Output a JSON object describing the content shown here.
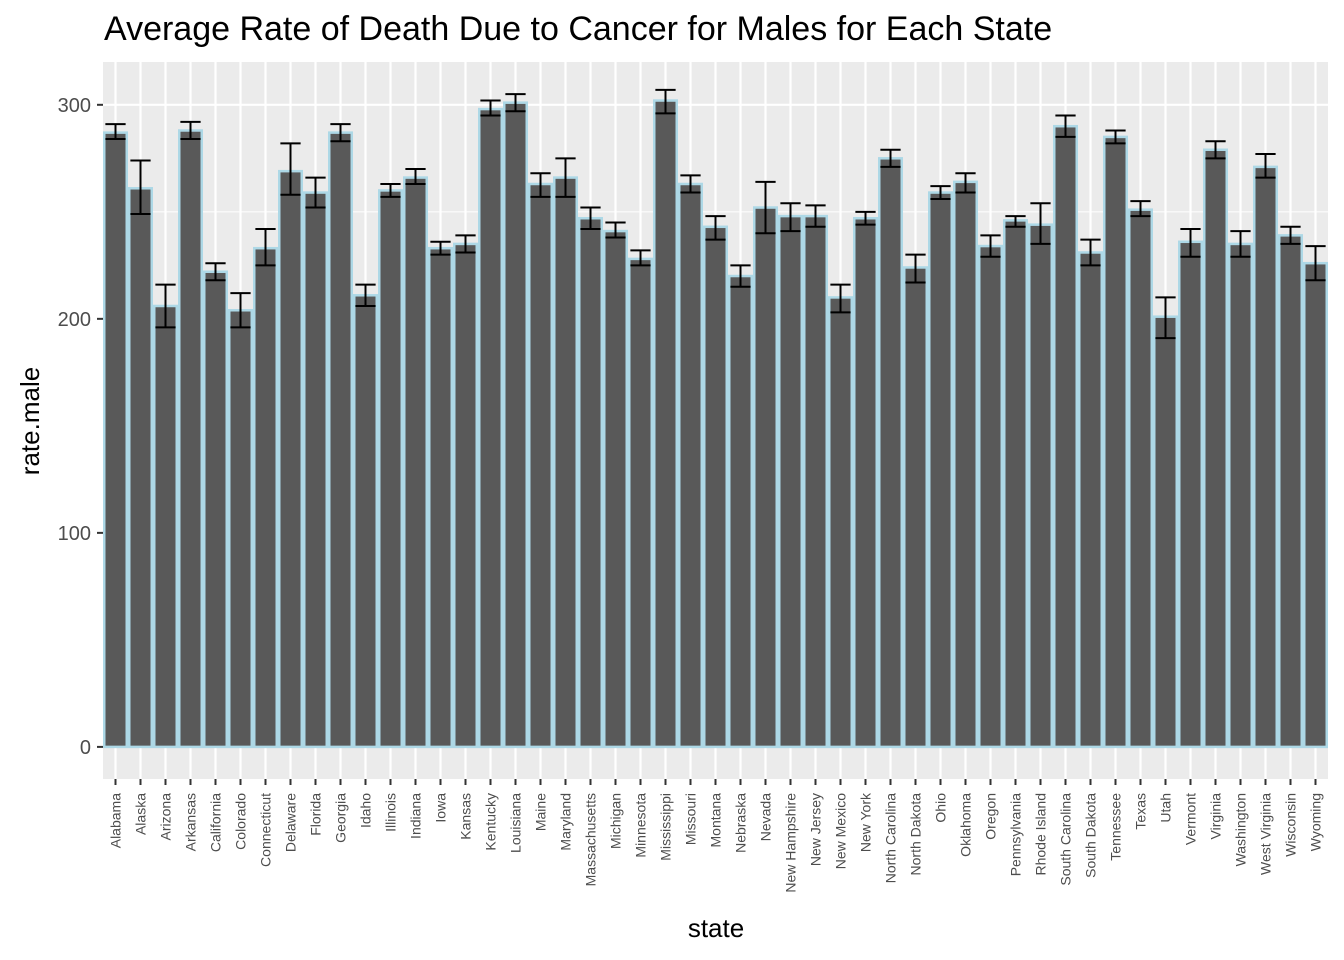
{
  "chart_data": {
    "type": "bar",
    "title": "Average Rate of Death Due to Cancer for Males for Each State",
    "xlabel": "state",
    "ylabel": "rate.male",
    "ylim": [
      -15,
      320
    ],
    "yticks": [
      0,
      100,
      200,
      300
    ],
    "grid": true,
    "legend": "none",
    "colors": {
      "bar_fill": "#595959",
      "bar_outline": "#add8e6",
      "error_bar": "#000000",
      "panel_bg": "#ebebeb",
      "grid": "#ffffff"
    },
    "categories": [
      "Alabama",
      "Alaska",
      "Arizona",
      "Arkansas",
      "California",
      "Colorado",
      "Connecticut",
      "Delaware",
      "Florida",
      "Georgia",
      "Idaho",
      "Illinois",
      "Indiana",
      "Iowa",
      "Kansas",
      "Kentucky",
      "Louisiana",
      "Maine",
      "Maryland",
      "Massachusetts",
      "Michigan",
      "Minnesota",
      "Mississippi",
      "Missouri",
      "Montana",
      "Nebraska",
      "Nevada",
      "New Hampshire",
      "New Jersey",
      "New Mexico",
      "New York",
      "North Carolina",
      "North Dakota",
      "Ohio",
      "Oklahoma",
      "Oregon",
      "Pennsylvania",
      "Rhode Island",
      "South Carolina",
      "South Dakota",
      "Tennessee",
      "Texas",
      "Utah",
      "Vermont",
      "Virginia",
      "Washington",
      "West Virginia",
      "Wisconsin",
      "Wyoming"
    ],
    "values": [
      287,
      261,
      206,
      288,
      222,
      204,
      233,
      269,
      259,
      287,
      211,
      260,
      266,
      233,
      235,
      298,
      301,
      263,
      266,
      247,
      241,
      228,
      302,
      263,
      243,
      220,
      252,
      248,
      248,
      210,
      247,
      275,
      224,
      259,
      264,
      234,
      246,
      244,
      290,
      231,
      285,
      251,
      201,
      236,
      279,
      235,
      271,
      239,
      226
    ],
    "error_low": [
      284,
      249,
      196,
      284,
      218,
      196,
      225,
      258,
      252,
      283,
      206,
      257,
      263,
      230,
      231,
      295,
      297,
      257,
      257,
      242,
      238,
      225,
      296,
      259,
      237,
      215,
      240,
      241,
      243,
      203,
      244,
      271,
      217,
      256,
      259,
      229,
      243,
      235,
      285,
      225,
      282,
      248,
      191,
      229,
      275,
      229,
      266,
      235,
      218
    ],
    "error_high": [
      291,
      274,
      216,
      292,
      226,
      212,
      242,
      282,
      266,
      291,
      216,
      263,
      270,
      236,
      239,
      302,
      305,
      268,
      275,
      252,
      245,
      232,
      307,
      267,
      248,
      225,
      264,
      254,
      253,
      216,
      250,
      279,
      230,
      262,
      268,
      239,
      248,
      254,
      295,
      237,
      288,
      255,
      210,
      242,
      283,
      241,
      277,
      243,
      234
    ]
  }
}
